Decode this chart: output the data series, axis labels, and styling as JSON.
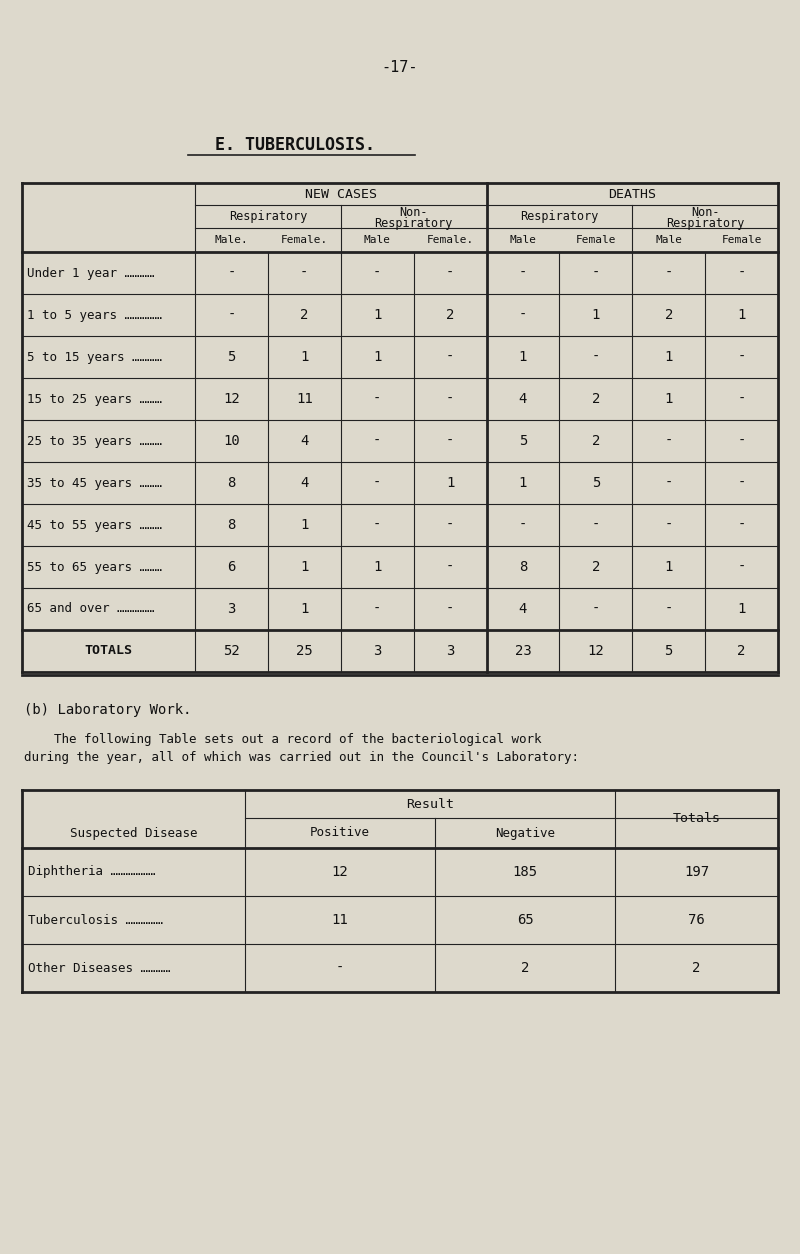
{
  "page_number": "-17-",
  "section_title": "E. TUBERCULOSIS.",
  "bg_color": "#ddd9cc",
  "table1": {
    "col_headers": [
      "Male.",
      "Female.",
      "Male",
      "Female.",
      "Male",
      "Female",
      "Male",
      "Female"
    ],
    "rows": [
      [
        "Under 1 year …………",
        "-",
        "-",
        "-",
        "-",
        "-",
        "-",
        "-",
        "-"
      ],
      [
        "1 to 5 years ……………",
        "-",
        "2",
        "1",
        "2",
        "-",
        "1",
        "2",
        "1"
      ],
      [
        "5 to 15 years …………",
        "5",
        "1",
        "1",
        "-",
        "1",
        "-",
        "1",
        "-"
      ],
      [
        "15 to 25 years ………",
        "12",
        "11",
        "-",
        "-",
        "4",
        "2",
        "1",
        "-"
      ],
      [
        "25 to 35 years ………",
        "10",
        "4",
        "-",
        "-",
        "5",
        "2",
        "-",
        "-"
      ],
      [
        "35 to 45 years ………",
        "8",
        "4",
        "-",
        "1",
        "1",
        "5",
        "-",
        "-"
      ],
      [
        "45 to 55 years ………",
        "8",
        "1",
        "-",
        "-",
        "-",
        "-",
        "-",
        "-"
      ],
      [
        "55 to 65 years ………",
        "6",
        "1",
        "1",
        "-",
        "8",
        "2",
        "1",
        "-"
      ],
      [
        "65 and over ……………",
        "3",
        "1",
        "-",
        "-",
        "4",
        "-",
        "-",
        "1"
      ]
    ],
    "totals_label": "TOTALS",
    "totals": [
      "52",
      "25",
      "3",
      "3",
      "23",
      "12",
      "5",
      "2"
    ]
  },
  "lab_section_title": "(b) Laboratory Work.",
  "lab_paragraph1": "    The following Table sets out a record of the bacteriological work",
  "lab_paragraph2": "during the year, all of which was carried out in the Council's Laboratory:",
  "table2": {
    "rows": [
      [
        "Diphtheria ………………",
        "12",
        "185",
        "197"
      ],
      [
        "Tuberculosis ……………",
        "11",
        "65",
        "76"
      ],
      [
        "Other Diseases …………",
        "-",
        "2",
        "2"
      ]
    ]
  }
}
